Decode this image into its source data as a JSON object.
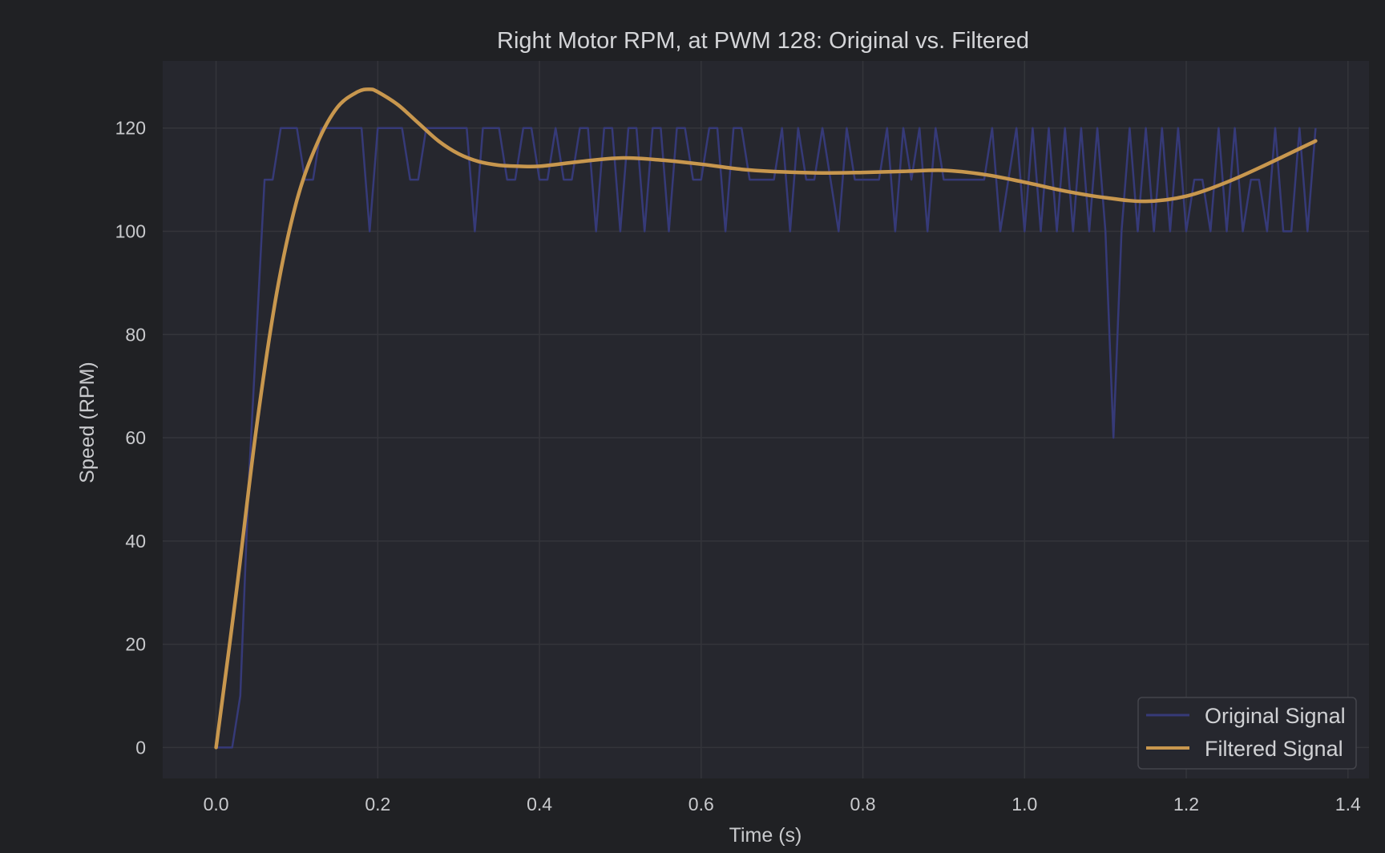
{
  "colors": {
    "figure_bg": "#202124",
    "plot_bg": "#26272e",
    "grid": "#34353b",
    "text": "#c9cacd",
    "original": "#363a78",
    "filtered": "#c8974e"
  },
  "chart_data": {
    "type": "line",
    "title": "Right Motor RPM, at PWM 128: Original vs. Filtered",
    "xlabel": "Time (s)",
    "ylabel": "Speed (RPM)",
    "xlim": [
      -0.066,
      1.426
    ],
    "ylim": [
      -6,
      133
    ],
    "xticks": [
      0.0,
      0.2,
      0.4,
      0.6,
      0.8,
      1.0,
      1.2,
      1.4
    ],
    "xtick_labels": [
      "0.0",
      "0.2",
      "0.4",
      "0.6",
      "0.8",
      "1.0",
      "1.2",
      "1.4"
    ],
    "yticks": [
      0,
      20,
      40,
      60,
      80,
      100,
      120
    ],
    "ytick_labels": [
      "0",
      "20",
      "40",
      "60",
      "80",
      "100",
      "120"
    ],
    "grid": true,
    "legend_position": "bottom-right",
    "series": [
      {
        "name": "Original Signal",
        "color": "#363a78",
        "x": [
          0.0,
          0.01,
          0.02,
          0.03,
          0.04,
          0.05,
          0.06,
          0.07,
          0.08,
          0.09,
          0.1,
          0.11,
          0.12,
          0.13,
          0.14,
          0.15,
          0.16,
          0.17,
          0.18,
          0.19,
          0.2,
          0.21,
          0.22,
          0.23,
          0.24,
          0.25,
          0.26,
          0.27,
          0.28,
          0.29,
          0.3,
          0.31,
          0.32,
          0.33,
          0.34,
          0.35,
          0.36,
          0.37,
          0.38,
          0.39,
          0.4,
          0.41,
          0.42,
          0.43,
          0.44,
          0.45,
          0.46,
          0.47,
          0.48,
          0.49,
          0.5,
          0.51,
          0.52,
          0.53,
          0.54,
          0.55,
          0.56,
          0.57,
          0.58,
          0.59,
          0.6,
          0.61,
          0.62,
          0.63,
          0.64,
          0.65,
          0.66,
          0.67,
          0.68,
          0.69,
          0.7,
          0.71,
          0.72,
          0.73,
          0.74,
          0.75,
          0.76,
          0.77,
          0.78,
          0.79,
          0.8,
          0.81,
          0.82,
          0.83,
          0.84,
          0.85,
          0.86,
          0.87,
          0.88,
          0.89,
          0.9,
          0.91,
          0.92,
          0.93,
          0.94,
          0.95,
          0.96,
          0.97,
          0.98,
          0.99,
          1.0,
          1.01,
          1.02,
          1.03,
          1.04,
          1.05,
          1.06,
          1.07,
          1.08,
          1.09,
          1.1,
          1.11,
          1.12,
          1.13,
          1.14,
          1.15,
          1.16,
          1.17,
          1.18,
          1.19,
          1.2,
          1.21,
          1.22,
          1.23,
          1.24,
          1.25,
          1.26,
          1.27,
          1.28,
          1.29,
          1.3,
          1.31,
          1.32,
          1.33,
          1.34,
          1.35,
          1.36
        ],
        "y": [
          0,
          0,
          0,
          10,
          50,
          80,
          110,
          110,
          120,
          120,
          120,
          110,
          110,
          120,
          120,
          120,
          120,
          120,
          120,
          100,
          120,
          120,
          120,
          120,
          110,
          110,
          120,
          120,
          120,
          120,
          120,
          120,
          100,
          120,
          120,
          120,
          110,
          110,
          120,
          120,
          110,
          110,
          120,
          110,
          110,
          120,
          120,
          100,
          120,
          120,
          100,
          120,
          120,
          100,
          120,
          120,
          100,
          120,
          120,
          110,
          110,
          120,
          120,
          100,
          120,
          120,
          110,
          110,
          110,
          110,
          120,
          100,
          120,
          110,
          110,
          120,
          110,
          100,
          120,
          110,
          110,
          110,
          110,
          120,
          100,
          120,
          110,
          120,
          100,
          120,
          110,
          110,
          110,
          110,
          110,
          110,
          120,
          100,
          110,
          120,
          100,
          120,
          100,
          120,
          100,
          120,
          100,
          120,
          100,
          120,
          100,
          60,
          100,
          120,
          100,
          120,
          100,
          120,
          100,
          120,
          100,
          110,
          110,
          100,
          120,
          100,
          120,
          100,
          110,
          110,
          100,
          120,
          100,
          100,
          120,
          100,
          120
        ]
      },
      {
        "name": "Filtered Signal",
        "color": "#c8974e",
        "x": [
          0.0,
          0.025,
          0.05,
          0.075,
          0.1,
          0.125,
          0.15,
          0.175,
          0.19,
          0.2,
          0.225,
          0.25,
          0.275,
          0.3,
          0.325,
          0.35,
          0.375,
          0.4,
          0.45,
          0.5,
          0.55,
          0.6,
          0.65,
          0.7,
          0.75,
          0.8,
          0.85,
          0.9,
          0.95,
          1.0,
          1.05,
          1.1,
          1.15,
          1.2,
          1.25,
          1.3,
          1.36
        ],
        "y": [
          0,
          30,
          62,
          88,
          106,
          117,
          124,
          127,
          127.5,
          127,
          124.5,
          121,
          117.5,
          115,
          113.5,
          112.8,
          112.6,
          112.6,
          113.5,
          114.2,
          113.8,
          113,
          112,
          111.5,
          111.3,
          111.4,
          111.6,
          111.8,
          111,
          109.5,
          107.8,
          106.5,
          105.8,
          106.8,
          109.5,
          113,
          117.5
        ]
      }
    ]
  }
}
